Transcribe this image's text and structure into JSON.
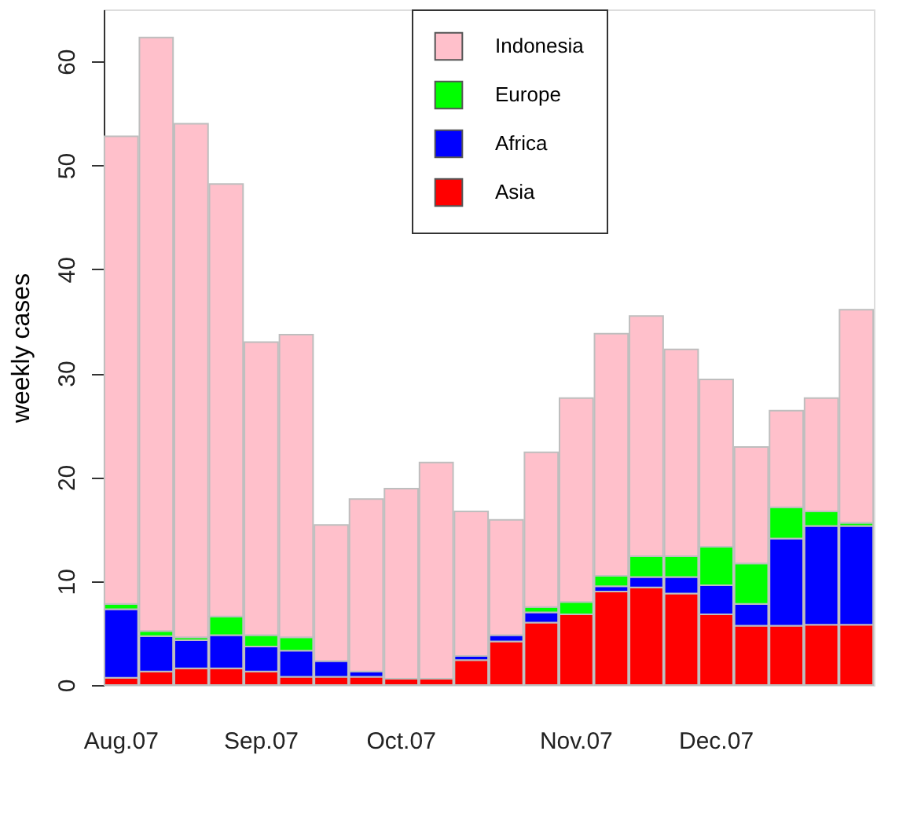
{
  "chart_data": {
    "type": "bar",
    "stacked": true,
    "ylabel": "weekly cases",
    "categories": [
      "Aug.07",
      null,
      null,
      null,
      "Sep.07",
      null,
      null,
      null,
      "Oct.07",
      null,
      null,
      null,
      null,
      "Nov.07",
      null,
      null,
      null,
      "Dec.07",
      null,
      null,
      null,
      null
    ],
    "series": [
      {
        "name": "Asia",
        "color": "#ff0000",
        "values": [
          0.7,
          1.3,
          1.6,
          1.6,
          1.3,
          0.8,
          0.8,
          0.8,
          0.6,
          0.6,
          2.4,
          4.2,
          6.0,
          6.8,
          9.0,
          9.4,
          8.8,
          6.8,
          5.7,
          5.7,
          5.8,
          5.8
        ]
      },
      {
        "name": "Africa",
        "color": "#0000ff",
        "values": [
          6.6,
          3.4,
          2.7,
          3.2,
          2.4,
          2.5,
          1.5,
          0.5,
          0,
          0,
          0.4,
          0.6,
          1.0,
          0,
          0.5,
          1.0,
          1.6,
          2.8,
          2.1,
          8.4,
          9.5,
          9.5
        ]
      },
      {
        "name": "Europe",
        "color": "#00ff00",
        "values": [
          0.5,
          0.5,
          0.3,
          1.8,
          1.1,
          1.3,
          0,
          0,
          0,
          0,
          0,
          0,
          0.5,
          1.2,
          1.0,
          2.0,
          2.0,
          3.7,
          3.9,
          3.0,
          1.4,
          0.3
        ]
      },
      {
        "name": "Indonesia",
        "color": "#ffc0cb",
        "values": [
          45.0,
          57.1,
          49.4,
          41.6,
          28.2,
          29.1,
          13.1,
          16.6,
          18.3,
          20.8,
          13.9,
          11.1,
          14.9,
          19.6,
          23.3,
          23.1,
          19.9,
          16.1,
          11.2,
          9.3,
          10.9,
          20.5
        ]
      }
    ],
    "ylim": [
      0,
      65
    ],
    "yticks": [
      0,
      10,
      20,
      30,
      40,
      50,
      60
    ],
    "grid": false,
    "legend": "top"
  }
}
